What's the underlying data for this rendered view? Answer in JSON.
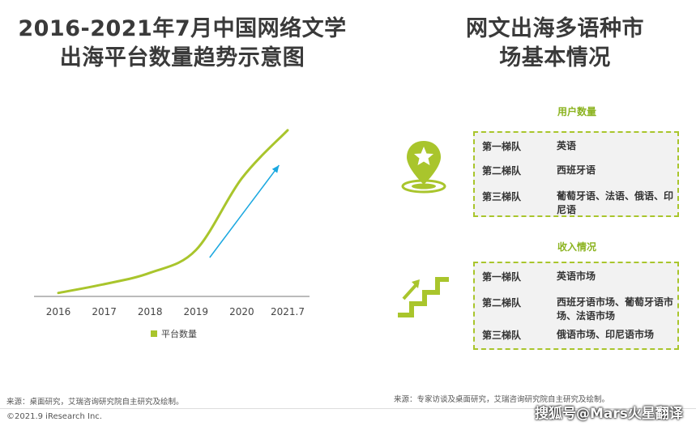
{
  "left_title_line1": "2016-2021年7月中国网络文学",
  "left_title_line2": "出海平台数量趋势示意图",
  "right_title_line1": "网文出海多语种市",
  "right_title_line2": "场基本情况",
  "chart_data": {
    "type": "line",
    "categories": [
      "2016",
      "2017",
      "2018",
      "2019",
      "2020",
      "2021.7"
    ],
    "series": [
      {
        "name": "平台数量",
        "values": [
          4,
          14,
          27,
          53,
          135,
          190
        ]
      }
    ],
    "ylim": [
      0,
      200
    ],
    "grid": false,
    "legend": "bottom-center",
    "trend_arrow": true,
    "line_color": "#a9c52c",
    "arrow_color": "#1aa8e0"
  },
  "sections": [
    {
      "heading": "用户数量",
      "icon": "location-star-icon",
      "rows": [
        {
          "tier": "第一梯队",
          "value": "英语"
        },
        {
          "tier": "第二梯队",
          "value": "西班牙语"
        },
        {
          "tier": "第三梯队",
          "value": "葡萄牙语、法语、俄语、印尼语"
        }
      ]
    },
    {
      "heading": "收入情况",
      "icon": "stairs-arrow-icon",
      "rows": [
        {
          "tier": "第一梯队",
          "value": "英语市场"
        },
        {
          "tier": "第二梯队",
          "value": "西班牙语市场、葡萄牙语市场、法语市场"
        },
        {
          "tier": "第三梯队",
          "value": "俄语市场、印尼语市场"
        }
      ]
    }
  ],
  "source_left": "来源：桌面研究，艾瑞咨询研究院自主研究及绘制。",
  "source_right": "来源：专家访谈及桌面研究，艾瑞咨询研究院自主研究及绘制。",
  "copyright": "©2021.9 iResearch Inc.",
  "watermark": "搜狐号@Mars火星翻译",
  "colors": {
    "accent_green": "#a9c52c",
    "arrow_blue": "#1aa8e0",
    "box_bg": "#f2f2f2"
  }
}
